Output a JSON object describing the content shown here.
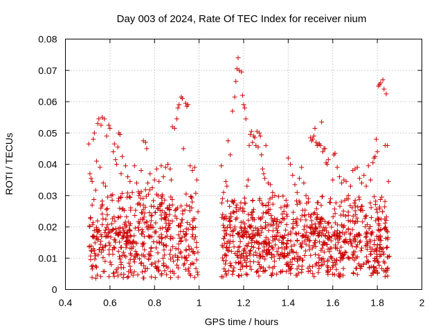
{
  "chart_data": {
    "type": "scatter",
    "title": "Day 003 of 2024, Rate Of TEC Index for receiver nium",
    "xlabel": "GPS time / hours",
    "ylabel": "ROTI / TECUs",
    "xlim": [
      0.4,
      2.0
    ],
    "ylim": [
      0,
      0.08
    ],
    "xticks": [
      0.4,
      0.6,
      0.8,
      1.0,
      1.2,
      1.4,
      1.6,
      1.8,
      2.0
    ],
    "xtick_labels": [
      "0.4",
      "0.6",
      "0.8",
      "1",
      "1.2",
      "1.4",
      "1.6",
      "1.8",
      "2"
    ],
    "yticks": [
      0,
      0.01,
      0.02,
      0.03,
      0.04,
      0.05,
      0.06,
      0.07,
      0.08
    ],
    "ytick_labels": [
      "0",
      "0.01",
      "0.02",
      "0.03",
      "0.04",
      "0.05",
      "0.06",
      "0.07",
      "0.08"
    ],
    "grid": true,
    "marker": "+",
    "series": [
      {
        "name": "ROTI",
        "color": "#cc0000",
        "points": [
          [
            0.505,
            0.0465
          ],
          [
            0.51,
            0.037
          ],
          [
            0.515,
            0.0355
          ],
          [
            0.52,
            0.0345
          ],
          [
            0.525,
            0.048
          ],
          [
            0.53,
            0.05
          ],
          [
            0.54,
            0.041
          ],
          [
            0.545,
            0.053
          ],
          [
            0.55,
            0.0545
          ],
          [
            0.555,
            0.039
          ],
          [
            0.56,
            0.0525
          ],
          [
            0.565,
            0.055
          ],
          [
            0.57,
            0.034
          ],
          [
            0.575,
            0.0545
          ],
          [
            0.58,
            0.033
          ],
          [
            0.585,
            0.049
          ],
          [
            0.59,
            0.0295
          ],
          [
            0.595,
            0.0525
          ],
          [
            0.6,
            0.0515
          ],
          [
            0.605,
            0.03
          ],
          [
            0.61,
            0.0285
          ],
          [
            0.615,
            0.044
          ],
          [
            0.62,
            0.0465
          ],
          [
            0.625,
            0.0415
          ],
          [
            0.63,
            0.04
          ],
          [
            0.635,
            0.0455
          ],
          [
            0.64,
            0.05
          ],
          [
            0.645,
            0.0495
          ],
          [
            0.65,
            0.037
          ],
          [
            0.655,
            0.0425
          ],
          [
            0.67,
            0.0395
          ],
          [
            0.68,
            0.036
          ],
          [
            0.69,
            0.0345
          ],
          [
            0.7,
            0.031
          ],
          [
            0.71,
            0.0395
          ],
          [
            0.72,
            0.034
          ],
          [
            0.73,
            0.03
          ],
          [
            0.74,
            0.038
          ],
          [
            0.75,
            0.0475
          ],
          [
            0.76,
            0.047
          ],
          [
            0.765,
            0.045
          ],
          [
            0.77,
            0.034
          ],
          [
            0.78,
            0.037
          ],
          [
            0.79,
            0.0325
          ],
          [
            0.8,
            0.035
          ],
          [
            0.81,
            0.0385
          ],
          [
            0.82,
            0.0345
          ],
          [
            0.83,
            0.0395
          ],
          [
            0.84,
            0.036
          ],
          [
            0.85,
            0.039
          ],
          [
            0.86,
            0.04
          ],
          [
            0.87,
            0.0385
          ],
          [
            0.875,
            0.035
          ],
          [
            0.88,
            0.052
          ],
          [
            0.89,
            0.0515
          ],
          [
            0.9,
            0.0545
          ],
          [
            0.905,
            0.058
          ],
          [
            0.91,
            0.059
          ],
          [
            0.92,
            0.0615
          ],
          [
            0.925,
            0.061
          ],
          [
            0.93,
            0.045
          ],
          [
            0.94,
            0.0595
          ],
          [
            0.945,
            0.0585
          ],
          [
            0.95,
            0.059
          ],
          [
            0.96,
            0.0395
          ],
          [
            0.97,
            0.038
          ],
          [
            0.98,
            0.039
          ],
          [
            0.99,
            0.035
          ],
          [
            1.1,
            0.0395
          ],
          [
            1.105,
            0.029
          ],
          [
            1.11,
            0.031
          ],
          [
            1.12,
            0.0345
          ],
          [
            1.125,
            0.033
          ],
          [
            1.13,
            0.0475
          ],
          [
            1.14,
            0.043
          ],
          [
            1.15,
            0.057
          ],
          [
            1.16,
            0.0615
          ],
          [
            1.165,
            0.0665
          ],
          [
            1.17,
            0.0705
          ],
          [
            1.175,
            0.074
          ],
          [
            1.18,
            0.07
          ],
          [
            1.19,
            0.0695
          ],
          [
            1.195,
            0.062
          ],
          [
            1.2,
            0.059
          ],
          [
            1.205,
            0.058
          ],
          [
            1.21,
            0.0545
          ],
          [
            1.215,
            0.033
          ],
          [
            1.22,
            0.035
          ],
          [
            1.225,
            0.046
          ],
          [
            1.23,
            0.0495
          ],
          [
            1.235,
            0.0505
          ],
          [
            1.24,
            0.047
          ],
          [
            1.245,
            0.049
          ],
          [
            1.25,
            0.0485
          ],
          [
            1.255,
            0.046
          ],
          [
            1.26,
            0.0505
          ],
          [
            1.265,
            0.0455
          ],
          [
            1.27,
            0.05
          ],
          [
            1.275,
            0.049
          ],
          [
            1.28,
            0.043
          ],
          [
            1.285,
            0.0385
          ],
          [
            1.29,
            0.037
          ],
          [
            1.295,
            0.0355
          ],
          [
            1.3,
            0.046
          ],
          [
            1.31,
            0.034
          ],
          [
            1.32,
            0.0335
          ],
          [
            1.33,
            0.031
          ],
          [
            1.34,
            0.03
          ],
          [
            1.4,
            0.042
          ],
          [
            1.41,
            0.04
          ],
          [
            1.42,
            0.0365
          ],
          [
            1.43,
            0.0335
          ],
          [
            1.44,
            0.031
          ],
          [
            1.45,
            0.0355
          ],
          [
            1.46,
            0.039
          ],
          [
            1.47,
            0.034
          ],
          [
            1.48,
            0.03
          ],
          [
            1.49,
            0.029
          ],
          [
            1.5,
            0.0485
          ],
          [
            1.505,
            0.0475
          ],
          [
            1.51,
            0.048
          ],
          [
            1.515,
            0.049
          ],
          [
            1.52,
            0.0515
          ],
          [
            1.525,
            0.047
          ],
          [
            1.53,
            0.046
          ],
          [
            1.535,
            0.0465
          ],
          [
            1.54,
            0.0465
          ],
          [
            1.545,
            0.046
          ],
          [
            1.55,
            0.0535
          ],
          [
            1.555,
            0.044
          ],
          [
            1.56,
            0.045
          ],
          [
            1.565,
            0.045
          ],
          [
            1.57,
            0.0405
          ],
          [
            1.575,
            0.04
          ],
          [
            1.58,
            0.0415
          ],
          [
            1.59,
            0.029
          ],
          [
            1.6,
            0.035
          ],
          [
            1.605,
            0.043
          ],
          [
            1.61,
            0.0435
          ],
          [
            1.62,
            0.039
          ],
          [
            1.63,
            0.036
          ],
          [
            1.64,
            0.034
          ],
          [
            1.65,
            0.035
          ],
          [
            1.66,
            0.0345
          ],
          [
            1.67,
            0.03
          ],
          [
            1.68,
            0.033
          ],
          [
            1.69,
            0.038
          ],
          [
            1.7,
            0.0385
          ],
          [
            1.71,
            0.039
          ],
          [
            1.72,
            0.0355
          ],
          [
            1.73,
            0.034
          ],
          [
            1.74,
            0.0365
          ],
          [
            1.75,
            0.033
          ],
          [
            1.76,
            0.0395
          ],
          [
            1.77,
            0.035
          ],
          [
            1.78,
            0.0405
          ],
          [
            1.785,
            0.042
          ],
          [
            1.79,
            0.0425
          ],
          [
            1.795,
            0.048
          ],
          [
            1.8,
            0.044
          ],
          [
            1.805,
            0.065
          ],
          [
            1.81,
            0.0655
          ],
          [
            1.815,
            0.066
          ],
          [
            1.82,
            0.0295
          ],
          [
            1.825,
            0.067
          ],
          [
            1.83,
            0.064
          ],
          [
            1.835,
            0.046
          ],
          [
            1.84,
            0.0625
          ],
          [
            1.845,
            0.046
          ],
          [
            1.85,
            0.0345
          ]
        ]
      }
    ],
    "dense_clusters": [
      {
        "x_start": 0.5,
        "x_end": 0.995,
        "y_low": 0.0035,
        "y_high": 0.032,
        "count": 520,
        "seed": 11
      },
      {
        "x_start": 1.1,
        "x_end": 1.855,
        "y_low": 0.004,
        "y_high": 0.03,
        "count": 900,
        "seed": 29
      }
    ]
  }
}
